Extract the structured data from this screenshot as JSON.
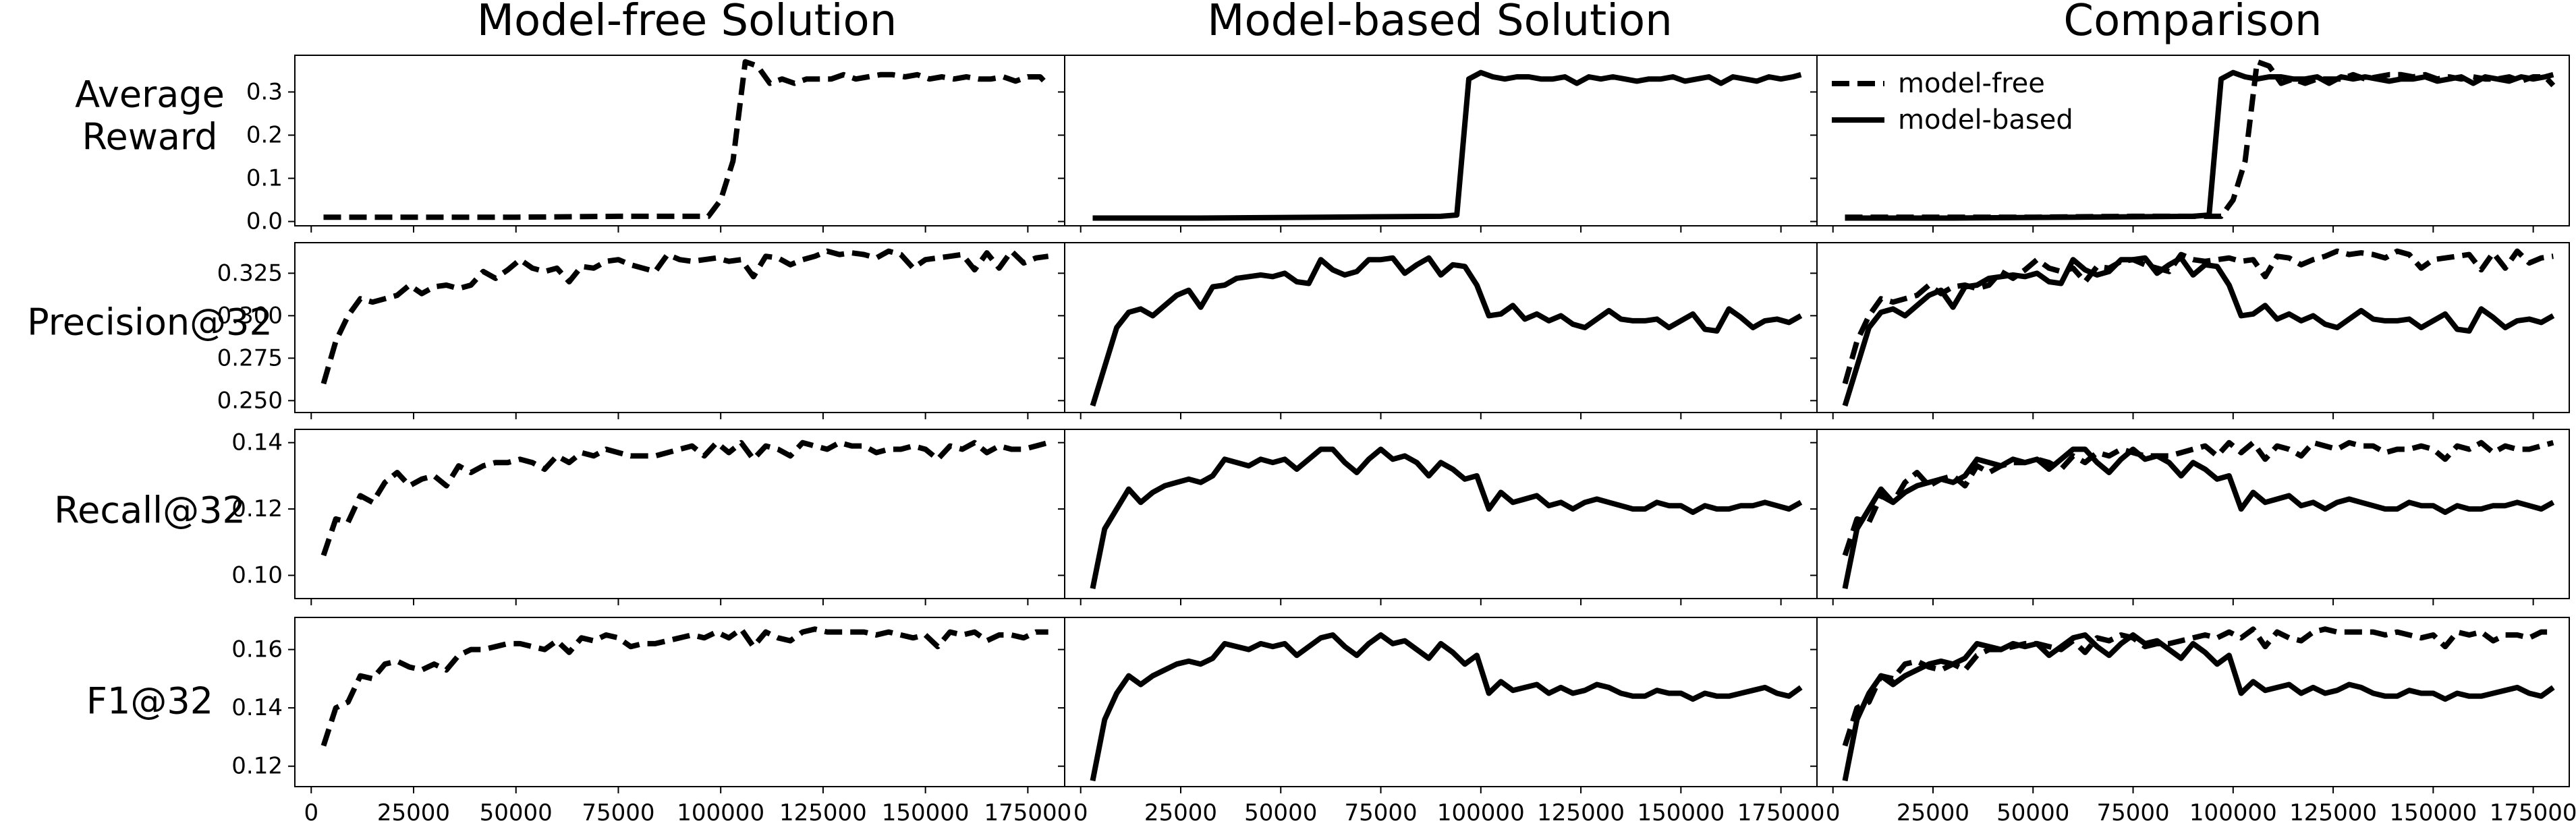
{
  "figure": {
    "column_titles": [
      "Model-free Solution",
      "Model-based Solution",
      "Comparison"
    ],
    "row_labels": [
      [
        "Average",
        "Reward"
      ],
      [
        "Precision@32"
      ],
      [
        "Recall@32"
      ],
      [
        "F1@32"
      ]
    ]
  },
  "chart_data": {
    "type": "line",
    "xlabel": "",
    "xlim": [
      -4000,
      184000
    ],
    "x_ticks": [
      0,
      25000,
      50000,
      75000,
      100000,
      125000,
      150000,
      175000
    ],
    "x_tick_labels": [
      "0",
      "25000",
      "50000",
      "75000",
      "100000",
      "125000",
      "150000",
      "175000"
    ],
    "legend": {
      "placement": "top-left",
      "panel": "Comparison / Average Reward",
      "entries": [
        "model-free",
        "model-based"
      ]
    },
    "series_styles": {
      "model-free": {
        "dash": "dashed",
        "color": "#000000"
      },
      "model-based": {
        "dash": "solid",
        "color": "#000000"
      }
    },
    "rows": [
      {
        "metric": "Average Reward",
        "ylim": [
          -0.01,
          0.385
        ],
        "y_ticks": [
          0.0,
          0.1,
          0.2,
          0.3
        ],
        "y_tick_labels": [
          "0.0",
          "0.1",
          "0.2",
          "0.3"
        ],
        "model_free": {
          "x": [
            3000,
            25000,
            50000,
            75000,
            97000,
            100000,
            103000,
            106000,
            109000,
            112000,
            115000,
            118000,
            121000,
            124000,
            127000,
            130000,
            133000,
            136000,
            139000,
            142000,
            145000,
            148000,
            151000,
            154000,
            157000,
            160000,
            163000,
            166000,
            169000,
            172000,
            175000,
            178000,
            180000
          ],
          "y": [
            0.01,
            0.01,
            0.01,
            0.012,
            0.012,
            0.05,
            0.14,
            0.37,
            0.36,
            0.32,
            0.33,
            0.32,
            0.33,
            0.33,
            0.33,
            0.34,
            0.33,
            0.335,
            0.34,
            0.34,
            0.335,
            0.34,
            0.33,
            0.335,
            0.33,
            0.335,
            0.33,
            0.33,
            0.335,
            0.325,
            0.335,
            0.335,
            0.315
          ]
        },
        "model_based": {
          "x": [
            3000,
            30000,
            60000,
            90000,
            94000,
            97000,
            100000,
            103000,
            106000,
            109000,
            112000,
            115000,
            118000,
            121000,
            124000,
            127000,
            130000,
            133000,
            136000,
            139000,
            142000,
            145000,
            148000,
            151000,
            154000,
            157000,
            160000,
            163000,
            166000,
            169000,
            172000,
            175000,
            178000,
            180000
          ],
          "y": [
            0.008,
            0.008,
            0.01,
            0.012,
            0.015,
            0.33,
            0.345,
            0.335,
            0.33,
            0.335,
            0.335,
            0.33,
            0.33,
            0.335,
            0.32,
            0.335,
            0.33,
            0.335,
            0.33,
            0.325,
            0.33,
            0.33,
            0.335,
            0.325,
            0.33,
            0.335,
            0.32,
            0.335,
            0.33,
            0.325,
            0.335,
            0.33,
            0.335,
            0.34
          ]
        }
      },
      {
        "metric": "Precision@32",
        "ylim": [
          0.243,
          0.343
        ],
        "y_ticks": [
          0.25,
          0.275,
          0.3,
          0.325
        ],
        "y_tick_labels": [
          "0.250",
          "0.275",
          "0.300",
          "0.325"
        ],
        "model_free": {
          "x": [
            3000,
            6000,
            9000,
            12000,
            15000,
            18000,
            21000,
            24000,
            27000,
            30000,
            33000,
            36000,
            39000,
            42000,
            45000,
            48000,
            51000,
            54000,
            57000,
            60000,
            63000,
            66000,
            69000,
            72000,
            75000,
            78000,
            81000,
            84000,
            87000,
            90000,
            93000,
            96000,
            99000,
            102000,
            105000,
            108000,
            111000,
            114000,
            117000,
            120000,
            123000,
            126000,
            129000,
            132000,
            135000,
            138000,
            141000,
            144000,
            147000,
            150000,
            153000,
            156000,
            159000,
            162000,
            165000,
            168000,
            171000,
            174000,
            177000,
            180000
          ],
          "y": [
            0.26,
            0.285,
            0.3,
            0.31,
            0.308,
            0.31,
            0.312,
            0.318,
            0.313,
            0.317,
            0.318,
            0.316,
            0.318,
            0.326,
            0.322,
            0.327,
            0.333,
            0.328,
            0.326,
            0.328,
            0.32,
            0.329,
            0.328,
            0.332,
            0.333,
            0.33,
            0.328,
            0.326,
            0.336,
            0.333,
            0.332,
            0.333,
            0.334,
            0.332,
            0.333,
            0.323,
            0.335,
            0.334,
            0.33,
            0.333,
            0.335,
            0.338,
            0.336,
            0.337,
            0.336,
            0.334,
            0.338,
            0.336,
            0.328,
            0.333,
            0.334,
            0.335,
            0.336,
            0.327,
            0.337,
            0.328,
            0.338,
            0.331,
            0.334,
            0.335
          ]
        },
        "model_based": {
          "x": [
            3000,
            6000,
            9000,
            12000,
            15000,
            18000,
            21000,
            24000,
            27000,
            30000,
            33000,
            36000,
            39000,
            42000,
            45000,
            48000,
            51000,
            54000,
            57000,
            60000,
            63000,
            66000,
            69000,
            72000,
            75000,
            78000,
            81000,
            84000,
            87000,
            90000,
            93000,
            96000,
            99000,
            102000,
            105000,
            108000,
            111000,
            114000,
            117000,
            120000,
            123000,
            126000,
            129000,
            132000,
            135000,
            138000,
            141000,
            144000,
            147000,
            150000,
            153000,
            156000,
            159000,
            162000,
            165000,
            168000,
            171000,
            174000,
            177000,
            180000
          ],
          "y": [
            0.247,
            0.27,
            0.293,
            0.302,
            0.304,
            0.3,
            0.306,
            0.312,
            0.315,
            0.305,
            0.317,
            0.318,
            0.322,
            0.323,
            0.324,
            0.323,
            0.325,
            0.32,
            0.319,
            0.333,
            0.327,
            0.324,
            0.326,
            0.333,
            0.333,
            0.334,
            0.325,
            0.33,
            0.334,
            0.324,
            0.33,
            0.329,
            0.318,
            0.3,
            0.301,
            0.306,
            0.298,
            0.301,
            0.297,
            0.3,
            0.295,
            0.293,
            0.298,
            0.303,
            0.298,
            0.297,
            0.297,
            0.298,
            0.293,
            0.297,
            0.301,
            0.292,
            0.291,
            0.304,
            0.299,
            0.293,
            0.297,
            0.298,
            0.296,
            0.3
          ]
        }
      },
      {
        "metric": "Recall@32",
        "ylim": [
          0.093,
          0.144
        ],
        "y_ticks": [
          0.1,
          0.12,
          0.14
        ],
        "y_tick_labels": [
          "0.10",
          "0.12",
          "0.14"
        ],
        "model_free": {
          "x": [
            3000,
            6000,
            9000,
            12000,
            15000,
            18000,
            21000,
            24000,
            27000,
            30000,
            33000,
            36000,
            39000,
            42000,
            45000,
            48000,
            51000,
            54000,
            57000,
            60000,
            63000,
            66000,
            69000,
            72000,
            75000,
            78000,
            81000,
            84000,
            87000,
            90000,
            93000,
            96000,
            99000,
            102000,
            105000,
            108000,
            111000,
            114000,
            117000,
            120000,
            123000,
            126000,
            129000,
            132000,
            135000,
            138000,
            141000,
            144000,
            147000,
            150000,
            153000,
            156000,
            159000,
            162000,
            165000,
            168000,
            171000,
            174000,
            177000,
            180000
          ],
          "y": [
            0.106,
            0.117,
            0.116,
            0.124,
            0.122,
            0.128,
            0.131,
            0.127,
            0.129,
            0.13,
            0.127,
            0.133,
            0.131,
            0.133,
            0.134,
            0.134,
            0.135,
            0.134,
            0.132,
            0.136,
            0.134,
            0.137,
            0.136,
            0.138,
            0.137,
            0.136,
            0.136,
            0.136,
            0.137,
            0.138,
            0.139,
            0.136,
            0.14,
            0.137,
            0.14,
            0.135,
            0.139,
            0.138,
            0.136,
            0.14,
            0.139,
            0.138,
            0.14,
            0.139,
            0.139,
            0.137,
            0.138,
            0.138,
            0.139,
            0.138,
            0.135,
            0.139,
            0.138,
            0.14,
            0.137,
            0.139,
            0.138,
            0.138,
            0.139,
            0.14
          ]
        },
        "model_based": {
          "x": [
            3000,
            6000,
            9000,
            12000,
            15000,
            18000,
            21000,
            24000,
            27000,
            30000,
            33000,
            36000,
            39000,
            42000,
            45000,
            48000,
            51000,
            54000,
            57000,
            60000,
            63000,
            66000,
            69000,
            72000,
            75000,
            78000,
            81000,
            84000,
            87000,
            90000,
            93000,
            96000,
            99000,
            102000,
            105000,
            108000,
            111000,
            114000,
            117000,
            120000,
            123000,
            126000,
            129000,
            132000,
            135000,
            138000,
            141000,
            144000,
            147000,
            150000,
            153000,
            156000,
            159000,
            162000,
            165000,
            168000,
            171000,
            174000,
            177000,
            180000
          ],
          "y": [
            0.096,
            0.114,
            0.12,
            0.126,
            0.122,
            0.125,
            0.127,
            0.128,
            0.129,
            0.128,
            0.13,
            0.135,
            0.134,
            0.133,
            0.135,
            0.134,
            0.135,
            0.132,
            0.135,
            0.138,
            0.138,
            0.134,
            0.131,
            0.135,
            0.138,
            0.135,
            0.136,
            0.134,
            0.13,
            0.134,
            0.132,
            0.129,
            0.13,
            0.12,
            0.125,
            0.122,
            0.123,
            0.124,
            0.121,
            0.122,
            0.12,
            0.122,
            0.123,
            0.122,
            0.121,
            0.12,
            0.12,
            0.122,
            0.121,
            0.121,
            0.119,
            0.121,
            0.12,
            0.12,
            0.121,
            0.121,
            0.122,
            0.121,
            0.12,
            0.122
          ]
        }
      },
      {
        "metric": "F1@32",
        "ylim": [
          0.113,
          0.171
        ],
        "y_ticks": [
          0.12,
          0.14,
          0.16
        ],
        "y_tick_labels": [
          "0.12",
          "0.14",
          "0.16"
        ],
        "model_free": {
          "x": [
            3000,
            6000,
            9000,
            12000,
            15000,
            18000,
            21000,
            24000,
            27000,
            30000,
            33000,
            36000,
            39000,
            42000,
            45000,
            48000,
            51000,
            54000,
            57000,
            60000,
            63000,
            66000,
            69000,
            72000,
            75000,
            78000,
            81000,
            84000,
            87000,
            90000,
            93000,
            96000,
            99000,
            102000,
            105000,
            108000,
            111000,
            114000,
            117000,
            120000,
            123000,
            126000,
            129000,
            132000,
            135000,
            138000,
            141000,
            144000,
            147000,
            150000,
            153000,
            156000,
            159000,
            162000,
            165000,
            168000,
            171000,
            174000,
            177000,
            180000
          ],
          "y": [
            0.127,
            0.14,
            0.142,
            0.151,
            0.15,
            0.155,
            0.156,
            0.154,
            0.153,
            0.155,
            0.153,
            0.158,
            0.16,
            0.16,
            0.161,
            0.162,
            0.162,
            0.161,
            0.16,
            0.163,
            0.159,
            0.164,
            0.163,
            0.165,
            0.164,
            0.161,
            0.162,
            0.162,
            0.163,
            0.164,
            0.165,
            0.164,
            0.166,
            0.164,
            0.167,
            0.161,
            0.166,
            0.164,
            0.163,
            0.166,
            0.167,
            0.166,
            0.166,
            0.166,
            0.166,
            0.165,
            0.166,
            0.165,
            0.164,
            0.165,
            0.161,
            0.166,
            0.165,
            0.166,
            0.163,
            0.165,
            0.165,
            0.164,
            0.166,
            0.166
          ]
        },
        "model_based": {
          "x": [
            3000,
            6000,
            9000,
            12000,
            15000,
            18000,
            21000,
            24000,
            27000,
            30000,
            33000,
            36000,
            39000,
            42000,
            45000,
            48000,
            51000,
            54000,
            57000,
            60000,
            63000,
            66000,
            69000,
            72000,
            75000,
            78000,
            81000,
            84000,
            87000,
            90000,
            93000,
            96000,
            99000,
            102000,
            105000,
            108000,
            111000,
            114000,
            117000,
            120000,
            123000,
            126000,
            129000,
            132000,
            135000,
            138000,
            141000,
            144000,
            147000,
            150000,
            153000,
            156000,
            159000,
            162000,
            165000,
            168000,
            171000,
            174000,
            177000,
            180000
          ],
          "y": [
            0.115,
            0.136,
            0.145,
            0.151,
            0.148,
            0.151,
            0.153,
            0.155,
            0.156,
            0.155,
            0.157,
            0.162,
            0.161,
            0.16,
            0.162,
            0.161,
            0.162,
            0.158,
            0.161,
            0.164,
            0.165,
            0.161,
            0.158,
            0.162,
            0.165,
            0.162,
            0.163,
            0.16,
            0.157,
            0.162,
            0.159,
            0.155,
            0.158,
            0.145,
            0.149,
            0.146,
            0.147,
            0.148,
            0.145,
            0.147,
            0.145,
            0.146,
            0.148,
            0.147,
            0.145,
            0.144,
            0.144,
            0.146,
            0.145,
            0.145,
            0.143,
            0.145,
            0.144,
            0.144,
            0.145,
            0.146,
            0.147,
            0.145,
            0.144,
            0.147
          ]
        }
      }
    ]
  }
}
